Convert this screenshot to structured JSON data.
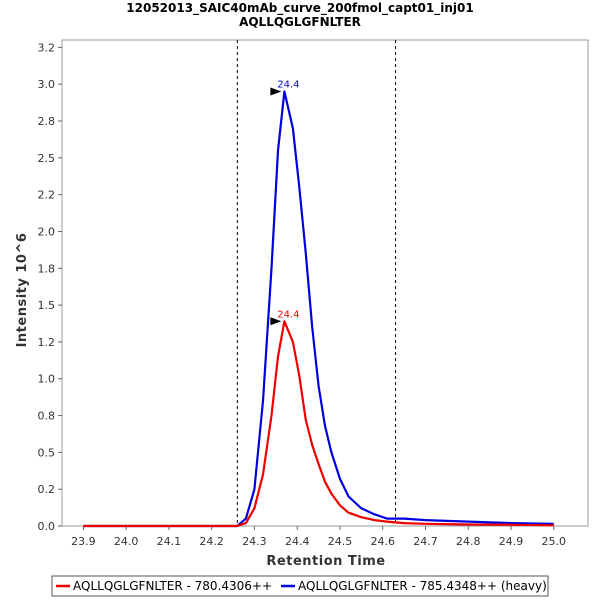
{
  "chart_data": {
    "type": "line",
    "title": "12052013_SAIC40mAb_curve_200fmol_capt01_inj01",
    "subtitle": "AQLLQGLGFNLTER",
    "xlabel": "Retention Time",
    "ylabel": "Intensity 10^6",
    "xlim": [
      23.85,
      25.08
    ],
    "ylim": [
      0,
      3.3
    ],
    "x_ticks": [
      "23.9",
      "24.0",
      "24.1",
      "24.2",
      "24.3",
      "24.4",
      "24.5",
      "24.6",
      "24.7",
      "24.8",
      "24.9",
      "25.0"
    ],
    "x_tick_values": [
      23.9,
      24.0,
      24.1,
      24.2,
      24.3,
      24.4,
      24.5,
      24.6,
      24.7,
      24.8,
      24.9,
      25.0
    ],
    "y_ticks": [
      "0.0",
      "0.2",
      "0.5",
      "0.8",
      "1.0",
      "1.2",
      "1.5",
      "1.8",
      "2.0",
      "2.2",
      "2.5",
      "2.8",
      "3.0",
      "3.2"
    ],
    "y_tick_values": [
      0.0,
      0.25,
      0.5,
      0.75,
      1.0,
      1.25,
      1.5,
      1.75,
      2.0,
      2.25,
      2.5,
      2.75,
      3.0,
      3.25
    ],
    "vlines": [
      24.26,
      24.63
    ],
    "series": [
      {
        "name": "AQLLQGLGFNLTER - 780.4306++",
        "color": "#ee0000",
        "peak_label": "24.4",
        "peak": [
          24.37,
          1.39
        ],
        "x": [
          23.9,
          24.0,
          24.1,
          24.2,
          24.26,
          24.28,
          24.3,
          24.32,
          24.34,
          24.355,
          24.37,
          24.39,
          24.405,
          24.42,
          24.435,
          24.45,
          24.465,
          24.48,
          24.5,
          24.52,
          24.55,
          24.58,
          24.61,
          24.65,
          24.7,
          24.8,
          24.9,
          25.0
        ],
        "y": [
          0.0,
          0.0,
          0.0,
          0.0,
          0.0,
          0.02,
          0.12,
          0.35,
          0.75,
          1.15,
          1.39,
          1.25,
          1.02,
          0.72,
          0.55,
          0.42,
          0.3,
          0.22,
          0.14,
          0.09,
          0.06,
          0.04,
          0.03,
          0.02,
          0.015,
          0.01,
          0.008,
          0.005
        ]
      },
      {
        "name": "AQLLQGLGFNLTER - 785.4348++ (heavy)",
        "color": "#0000dd",
        "peak_label": "24.4",
        "peak": [
          24.37,
          2.95
        ],
        "x": [
          23.9,
          24.0,
          24.1,
          24.2,
          24.26,
          24.28,
          24.3,
          24.32,
          24.34,
          24.355,
          24.37,
          24.39,
          24.405,
          24.42,
          24.435,
          24.45,
          24.465,
          24.48,
          24.5,
          24.52,
          24.55,
          24.58,
          24.61,
          24.65,
          24.7,
          24.8,
          24.9,
          25.0
        ],
        "y": [
          0.0,
          0.0,
          0.0,
          0.0,
          0.0,
          0.05,
          0.25,
          0.85,
          1.75,
          2.55,
          2.95,
          2.7,
          2.3,
          1.85,
          1.35,
          0.95,
          0.68,
          0.5,
          0.32,
          0.2,
          0.12,
          0.08,
          0.05,
          0.05,
          0.04,
          0.03,
          0.02,
          0.015
        ]
      }
    ],
    "legend_position": "bottom"
  }
}
